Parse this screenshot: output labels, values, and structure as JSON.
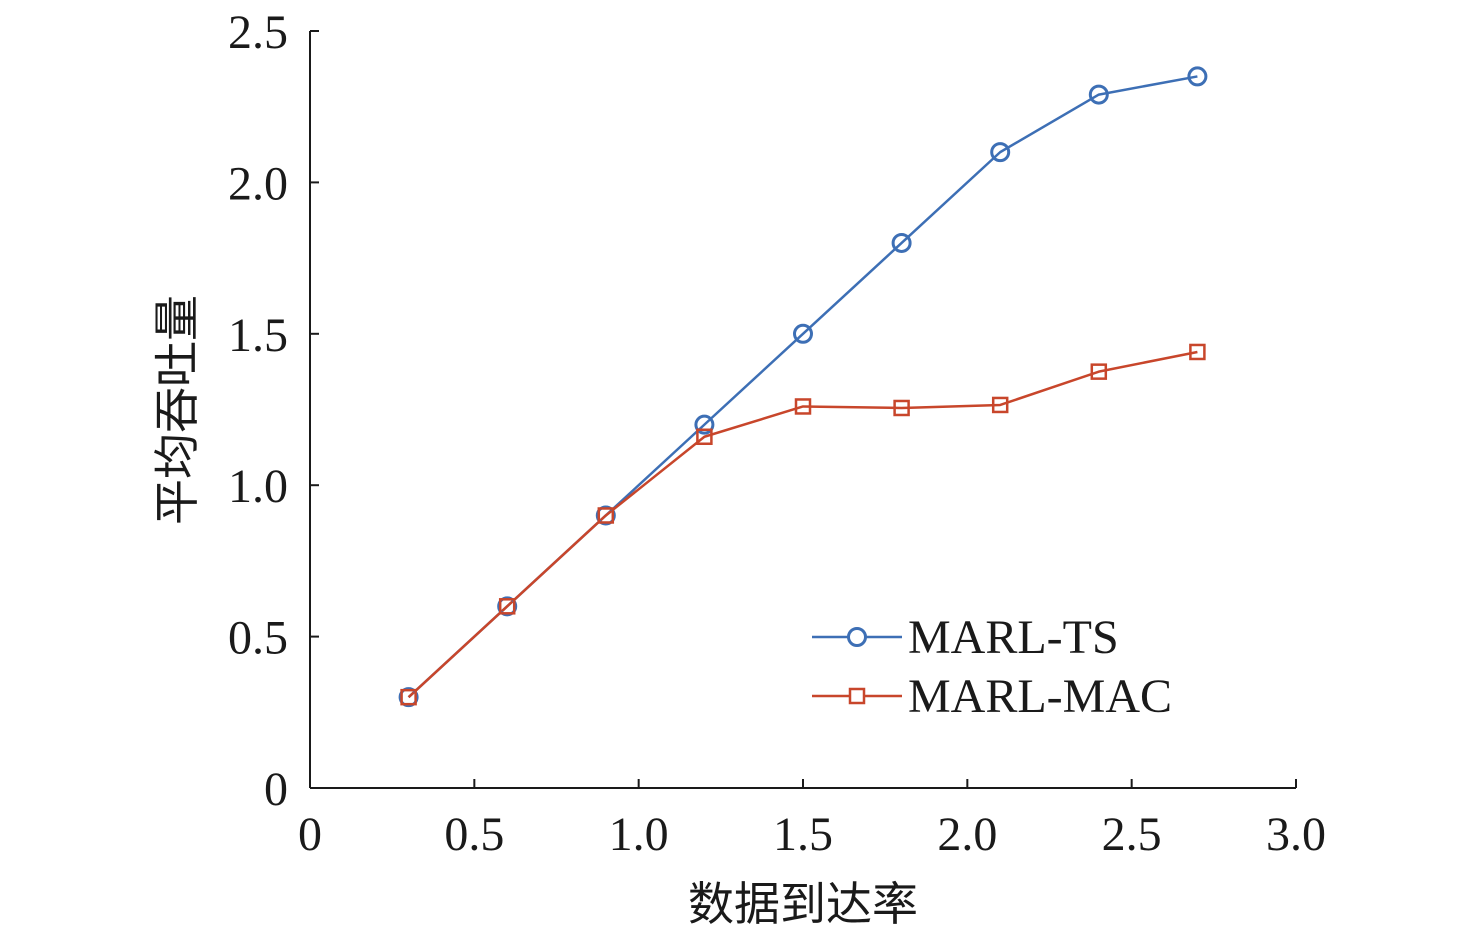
{
  "chart_data": {
    "type": "line",
    "title": "",
    "xlabel": "数据到达率",
    "ylabel": "平均吞吐量",
    "xlim": [
      0,
      3.0
    ],
    "ylim": [
      0,
      2.5
    ],
    "xticks": [
      "0",
      "0.5",
      "1.0",
      "1.5",
      "2.0",
      "2.5",
      "3.0"
    ],
    "yticks": [
      "0",
      "0.5",
      "1.0",
      "1.5",
      "2.0",
      "2.5"
    ],
    "x": [
      0.3,
      0.6,
      0.9,
      1.2,
      1.5,
      1.8,
      2.1,
      2.4,
      2.7
    ],
    "series": [
      {
        "name": "MARL-TS",
        "marker": "circle",
        "color": "#3d6fb5",
        "values": [
          0.3,
          0.6,
          0.9,
          1.2,
          1.5,
          1.8,
          2.1,
          2.29,
          2.35
        ]
      },
      {
        "name": "MARL-MAC",
        "marker": "square",
        "color": "#c8462b",
        "values": [
          0.3,
          0.6,
          0.9,
          1.16,
          1.26,
          1.255,
          1.265,
          1.375,
          1.44
        ]
      }
    ],
    "grid": false,
    "legend_position": "bottom-right"
  }
}
